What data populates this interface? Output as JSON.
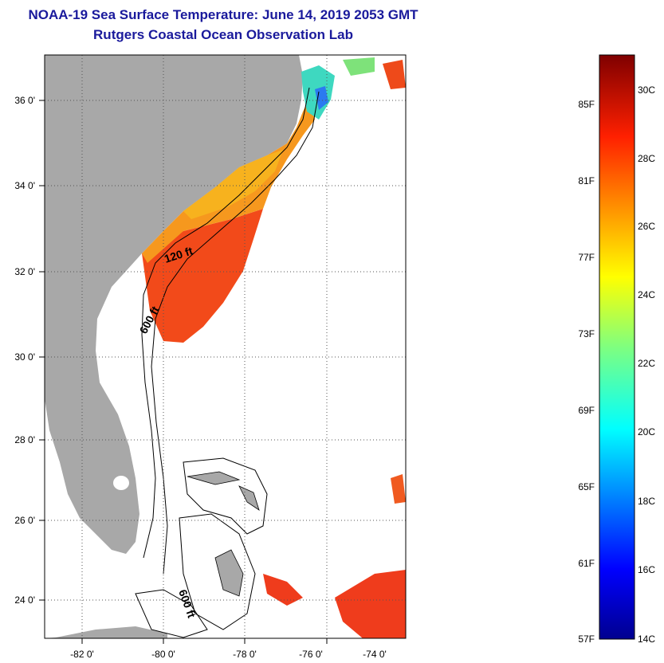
{
  "header": {
    "title": "NOAA-19 Sea Surface Temperature:  June 14, 2019 2053 GMT",
    "subtitle": "Rutgers Coastal Ocean Observation Lab"
  },
  "map": {
    "lat_labels": [
      "36 0'",
      "34 0'",
      "32 0'",
      "30 0'",
      "28 0'",
      "26 0'",
      "24 0'"
    ],
    "lon_labels": [
      "-82 0'",
      "-80 0'",
      "-78 0'",
      "-76 0'",
      "-74 0'"
    ],
    "contours": {
      "label_120": "120 ft",
      "label_600a": "600 ft",
      "label_600b": "600 ft"
    },
    "colors": {
      "land": "#a8a8a8",
      "ocean": "#ffffff",
      "sst_warm": "#f04a1e",
      "sst_mid": "#f59a20",
      "sst_cool": "#36d6c0"
    }
  },
  "colorbar": {
    "fahrenheit": [
      "85F",
      "81F",
      "77F",
      "73F",
      "69F",
      "65F",
      "61F",
      "57F"
    ],
    "celsius": [
      "30C",
      "28C",
      "26C",
      "24C",
      "22C",
      "20C",
      "18C",
      "16C",
      "14C"
    ]
  }
}
